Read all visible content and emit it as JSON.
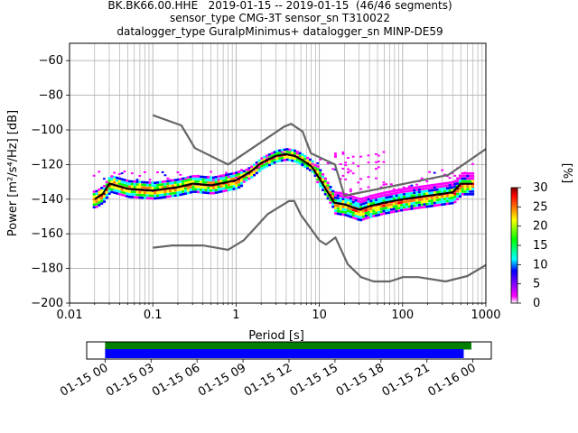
{
  "chart_data": [
    {
      "type": "heatmap",
      "title_lines": [
        "BK.BK66.00.HHE   2019-01-15 -- 2019-01-15  (46/46 segments)",
        "sensor_type CMG-3T sensor_sn T310022",
        "datalogger_type GuralpMinimus+ datalogger_sn MINP-DE59"
      ],
      "xlabel": "Period [s]",
      "ylabel": "Power [m²/s⁴/Hz] [dB]",
      "xscale": "log",
      "xlim": [
        0.01,
        1000
      ],
      "ylim": [
        -200,
        -50
      ],
      "xticks": [
        {
          "v": 0.01,
          "label": "0.01"
        },
        {
          "v": 0.1,
          "label": "0.1"
        },
        {
          "v": 1,
          "label": "1"
        },
        {
          "v": 10,
          "label": "10"
        },
        {
          "v": 100,
          "label": "100"
        },
        {
          "v": 1000,
          "label": "1000"
        }
      ],
      "yticks": [
        -60,
        -80,
        -100,
        -120,
        -140,
        -160,
        -180,
        -200
      ],
      "grid": true,
      "colorbar": {
        "label": "[%]",
        "ticks": [
          0,
          5,
          10,
          15,
          20,
          25,
          30
        ],
        "range": [
          0,
          30
        ],
        "colors": [
          "#ffffff",
          "#ff00ff",
          "#0000ff",
          "#00ffff",
          "#00ff00",
          "#ffff00",
          "#ff8000",
          "#ff0000",
          "#800000"
        ]
      },
      "series": [
        {
          "role": "noise_model_high",
          "color": "#666666",
          "x": [
            0.1,
            0.22,
            0.32,
            0.8,
            3.8,
            4.6,
            6.3,
            7.9,
            15.4,
            20,
            354,
            1000
          ],
          "y": [
            -91.5,
            -97.4,
            -110.5,
            -120,
            -98,
            -96.5,
            -101,
            -113.5,
            -120,
            -138,
            -126,
            -111
          ]
        },
        {
          "role": "noise_model_low",
          "color": "#666666",
          "x": [
            0.1,
            0.17,
            0.4,
            0.8,
            1.24,
            2.4,
            4.3,
            5,
            6,
            10,
            12,
            15.6,
            21.9,
            31.6,
            45,
            70,
            101,
            154,
            328,
            600,
            1000
          ],
          "y": [
            -168,
            -166.7,
            -166.7,
            -169.2,
            -163.7,
            -148.6,
            -141.1,
            -141.1,
            -149,
            -163.8,
            -166.2,
            -162.1,
            -177.5,
            -185,
            -187.5,
            -187.5,
            -185,
            -185,
            -187.5,
            -184.4,
            -178
          ]
        },
        {
          "role": "median_psd",
          "color": "#000000",
          "x": [
            0.02,
            0.025,
            0.03,
            0.05,
            0.1,
            0.2,
            0.3,
            0.5,
            0.8,
            1,
            1.5,
            2,
            3,
            4,
            5,
            6,
            8,
            10,
            15,
            20,
            30,
            40,
            60,
            100,
            200,
            400,
            500,
            700
          ],
          "y": [
            -140,
            -137,
            -131,
            -134,
            -135,
            -133,
            -131,
            -132,
            -130,
            -129,
            -124,
            -119,
            -115,
            -114,
            -115,
            -117,
            -121,
            -128,
            -142,
            -143,
            -146,
            -144,
            -142,
            -140,
            -138,
            -136,
            -131,
            -131
          ]
        },
        {
          "role": "psd_mode_spread",
          "color": "#ff00ff",
          "x": [
            0.02,
            0.04,
            0.1,
            0.3,
            1,
            3,
            8,
            20,
            25,
            30,
            50,
            100,
            200,
            500,
            700
          ],
          "y": [
            -127,
            -126,
            -127,
            -126,
            -128,
            -114,
            -118,
            -125,
            -112,
            -115,
            -130,
            -133,
            -127,
            -124,
            -121
          ]
        }
      ]
    },
    {
      "type": "timeline",
      "tick_labels": [
        "01-15 00",
        "01-15 03",
        "01-15 06",
        "01-15 09",
        "01-15 12",
        "01-15 15",
        "01-15 18",
        "01-15 21",
        "01-16 00"
      ],
      "time_range_hours": [
        -1.2,
        25.2
      ],
      "bars": [
        {
          "color": "#008000",
          "start_hours": 0,
          "end_hours": 23.9
        },
        {
          "color": "#0000ff",
          "start_hours": 0,
          "end_hours": 23.4
        }
      ]
    }
  ]
}
